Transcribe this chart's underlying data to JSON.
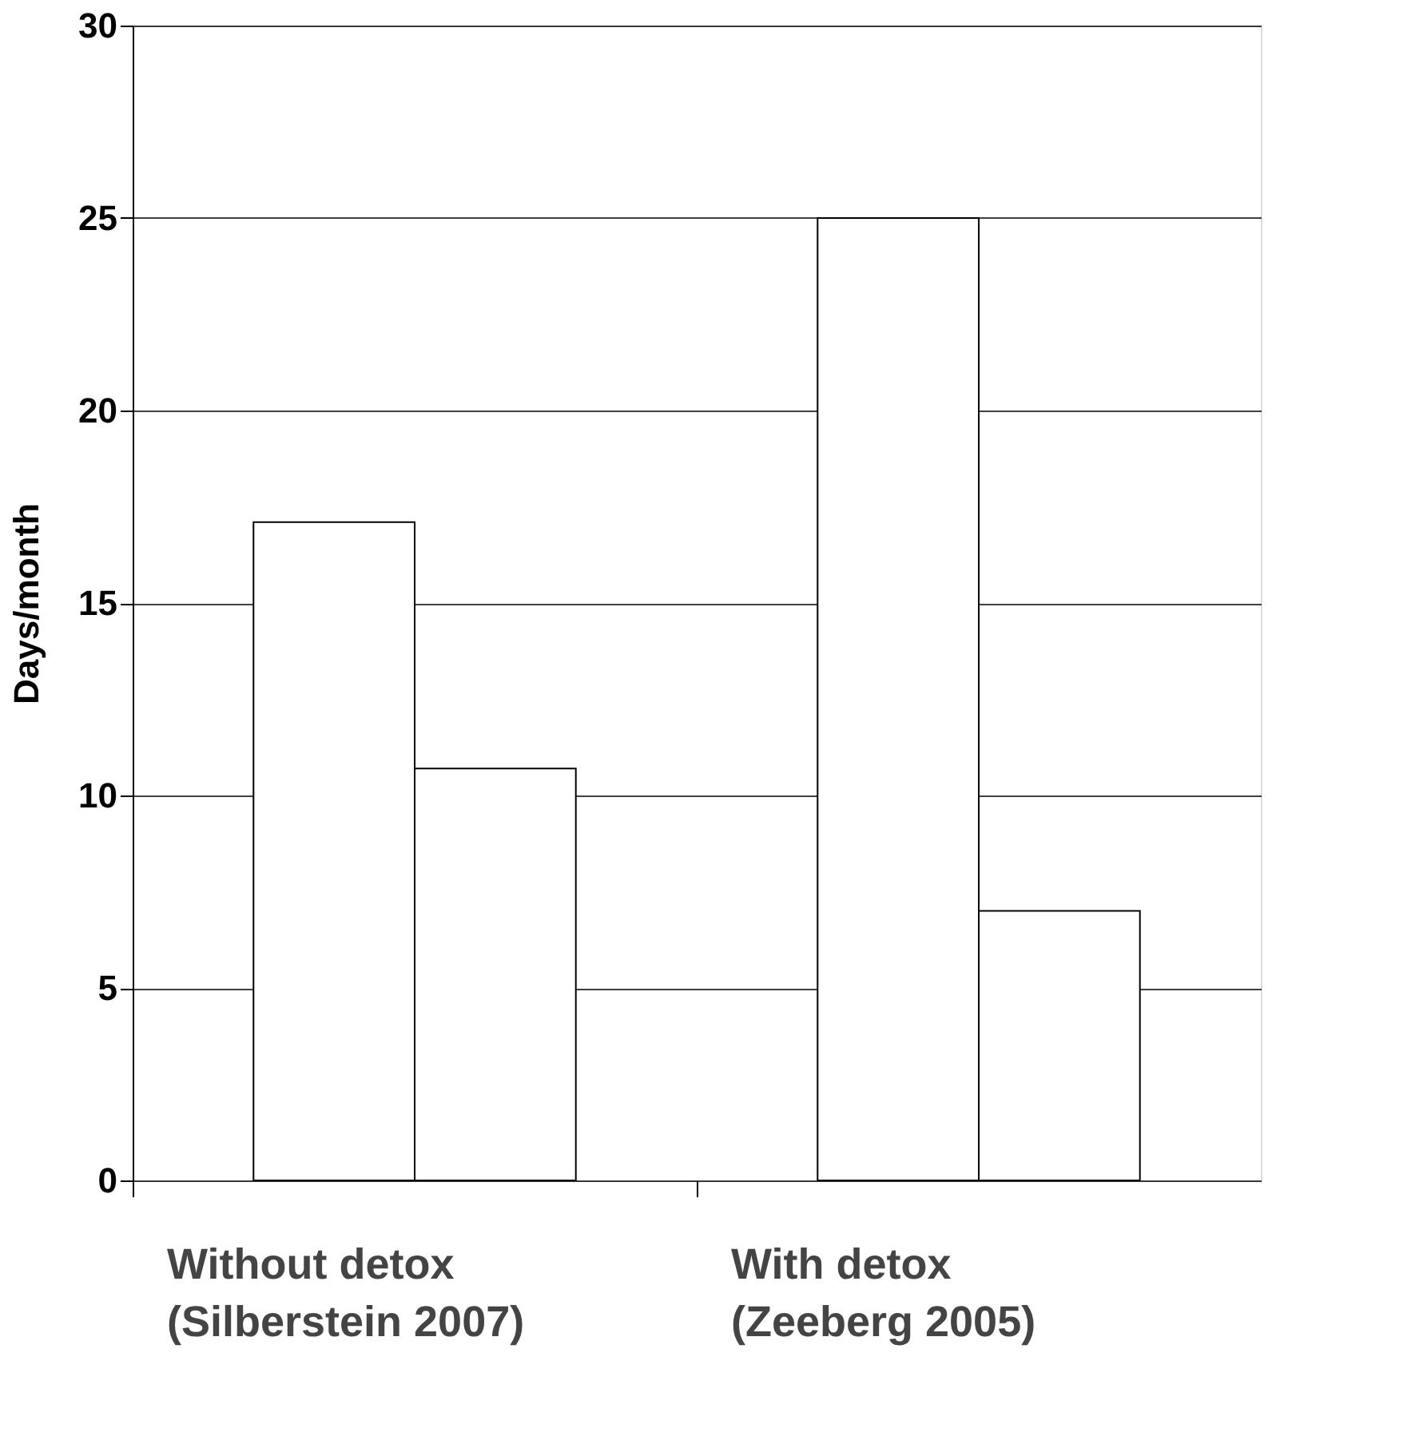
{
  "chart_data": {
    "type": "bar",
    "ylabel": "Days/month",
    "categories": [
      "Without detox\n(Silberstein 2007)",
      "With detox\n(Zeeberg 2005)"
    ],
    "series": [
      {
        "color": "#ffffff",
        "values": [
          17.1,
          25
        ]
      },
      {
        "color": "#ffffff",
        "values": [
          10.7,
          7
        ]
      }
    ],
    "ylim": [
      0,
      30
    ],
    "yticks": [
      0,
      5,
      10,
      15,
      20,
      25,
      30
    ],
    "grid": "y"
  }
}
